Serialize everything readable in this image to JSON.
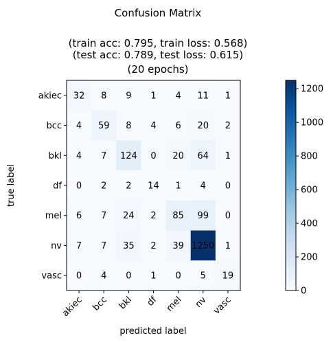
{
  "chart_data": {
    "type": "heatmap",
    "title": "Confusion Matrix",
    "subtitle_lines": [
      "(train acc: 0.795, train loss: 0.568)",
      "(test acc: 0.789, test loss: 0.615)",
      "(20 epochs)"
    ],
    "xlabel": "predicted label",
    "ylabel": "true label",
    "x_categories": [
      "akiec",
      "bcc",
      "bkl",
      "df",
      "mel",
      "nv",
      "vasc"
    ],
    "y_categories": [
      "akiec",
      "bcc",
      "bkl",
      "df",
      "mel",
      "nv",
      "vasc"
    ],
    "values": [
      [
        32,
        8,
        9,
        1,
        4,
        11,
        1
      ],
      [
        4,
        59,
        8,
        4,
        6,
        20,
        2
      ],
      [
        4,
        7,
        124,
        0,
        20,
        64,
        1
      ],
      [
        0,
        2,
        2,
        14,
        1,
        4,
        0
      ],
      [
        6,
        7,
        24,
        2,
        85,
        99,
        0
      ],
      [
        7,
        7,
        35,
        2,
        39,
        1250,
        1
      ],
      [
        0,
        4,
        0,
        1,
        0,
        5,
        19
      ]
    ],
    "colormap": "Blues",
    "colorbar_range": [
      0,
      1250
    ],
    "colorbar_ticks": [
      0,
      200,
      400,
      600,
      800,
      1000,
      1200
    ]
  }
}
